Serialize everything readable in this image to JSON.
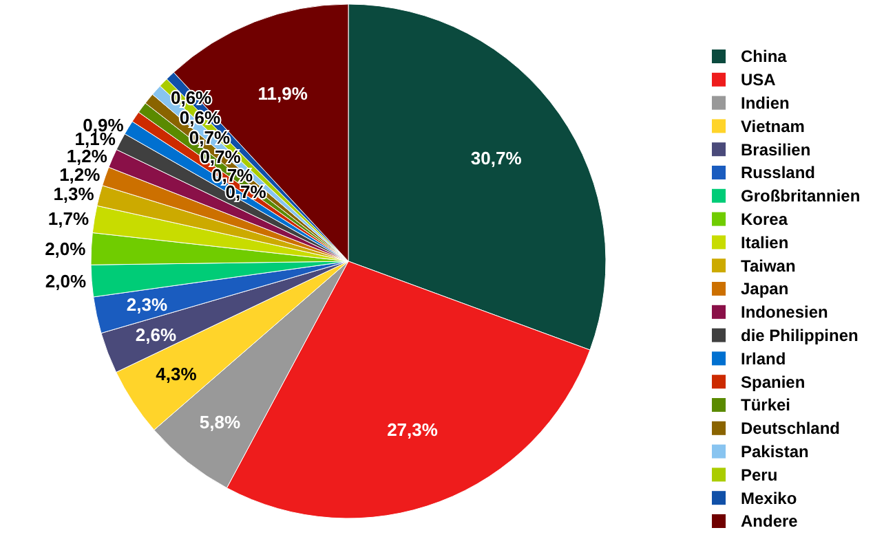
{
  "chart_data": {
    "type": "pie",
    "categories": [
      "China",
      "USA",
      "Indien",
      "Vietnam",
      "Brasilien",
      "Russland",
      "Großbritannien",
      "Korea",
      "Italien",
      "Taiwan",
      "Japan",
      "Indonesien",
      "die Philippinen",
      "Irland",
      "Spanien",
      "Türkei",
      "Deutschland",
      "Pakistan",
      "Peru",
      "Mexiko",
      "Andere"
    ],
    "values": [
      30.7,
      27.3,
      5.8,
      4.3,
      2.6,
      2.3,
      2.0,
      2.0,
      1.7,
      1.3,
      1.2,
      1.2,
      1.1,
      0.9,
      0.7,
      0.7,
      0.7,
      0.7,
      0.6,
      0.6,
      11.9
    ],
    "value_labels": [
      "30,7%",
      "27,3%",
      "5,8%",
      "4,3%",
      "2,6%",
      "2,3%",
      "2,0%",
      "2,0%",
      "1,7%",
      "1,3%",
      "1,2%",
      "1,2%",
      "1,1%",
      "0,9%",
      "0,7%",
      "0,7%",
      "0,7%",
      "0,7%",
      "0,6%",
      "0,6%",
      "11,9%"
    ],
    "colors": [
      "#0b4a3e",
      "#ee1c1c",
      "#999999",
      "#ffd42a",
      "#4a4a7a",
      "#1a5cbf",
      "#00cc77",
      "#70cc00",
      "#c8dc00",
      "#ccaa00",
      "#cc7000",
      "#8a1048",
      "#404040",
      "#0070d0",
      "#cc2a00",
      "#5a8a00",
      "#8a6400",
      "#88c4f0",
      "#aacc00",
      "#1050a8",
      "#700000"
    ],
    "legend": "right"
  }
}
